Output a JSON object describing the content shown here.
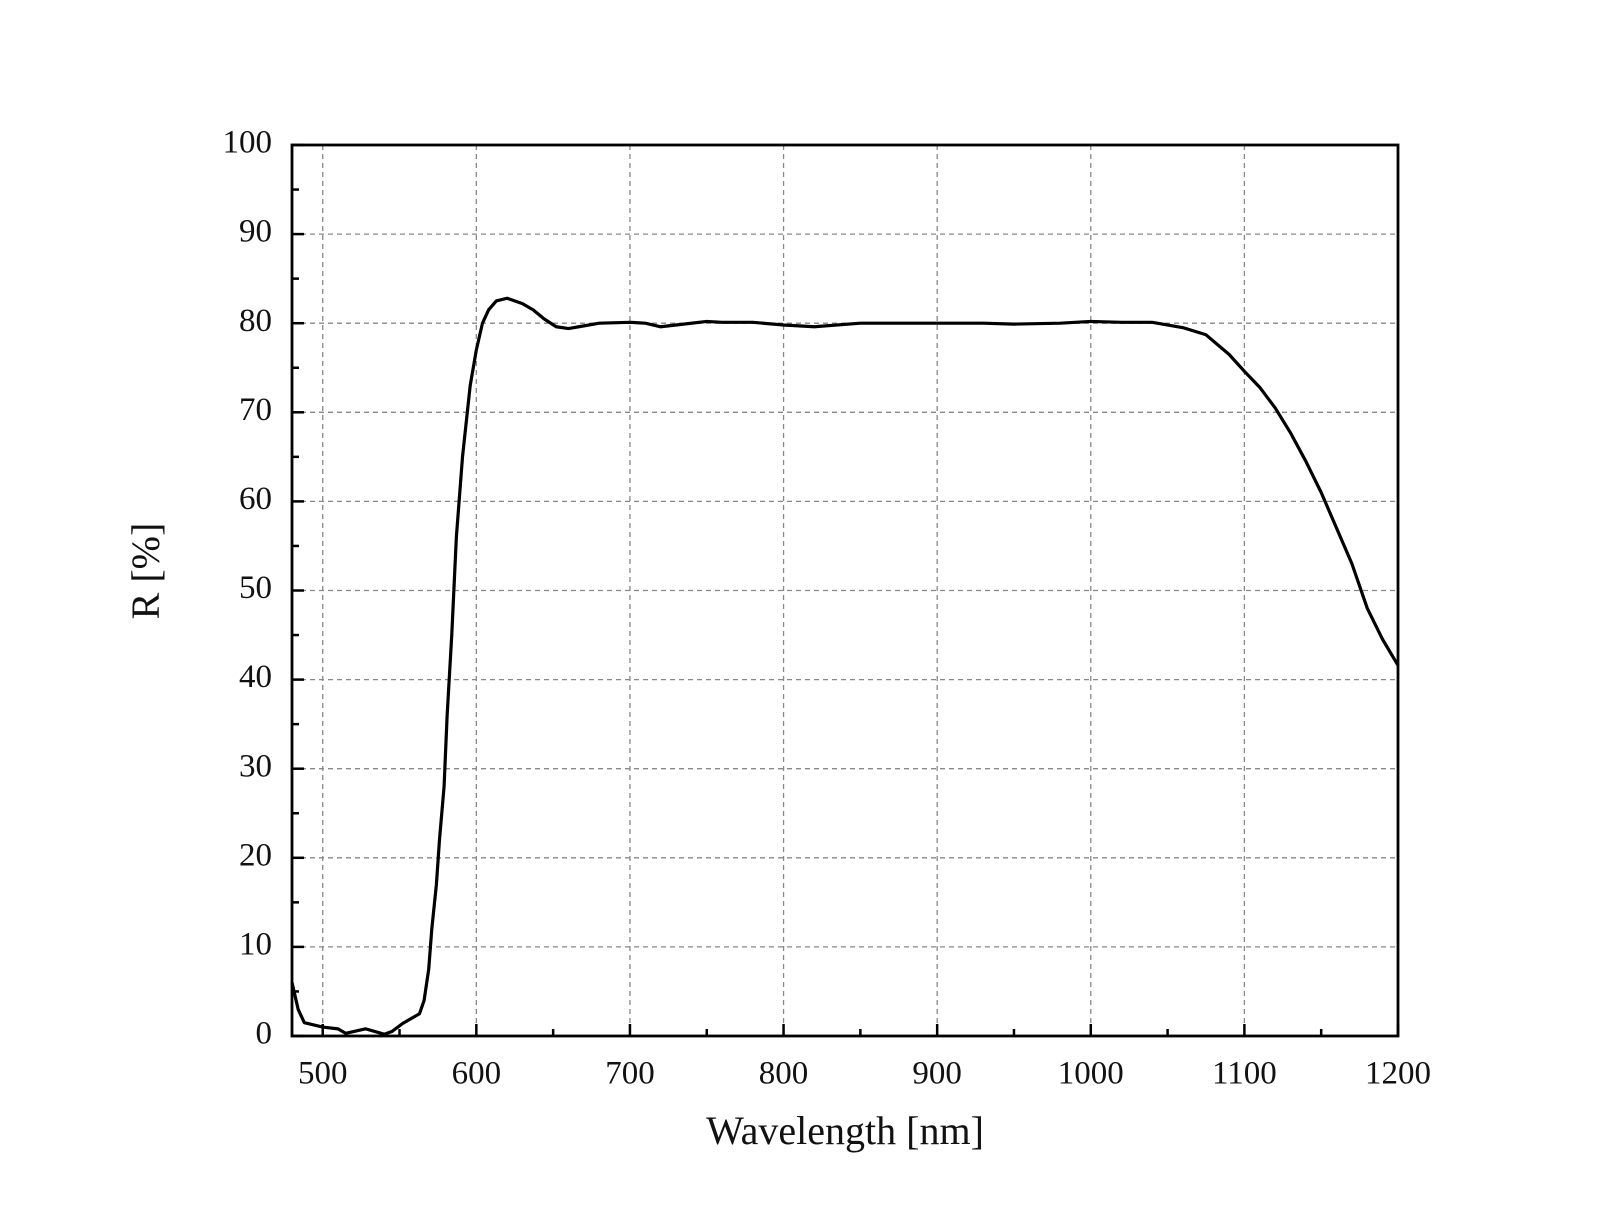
{
  "chart_data": {
    "type": "line",
    "x_label": "Wavelength [nm]",
    "y_label": "R [%]",
    "xlim": [
      480,
      1200
    ],
    "xticks": [
      500,
      600,
      700,
      800,
      900,
      1000,
      1100,
      1200
    ],
    "minor_xticks": [
      550,
      650,
      750,
      850,
      950,
      1050,
      1150
    ],
    "ylim": [
      0,
      100
    ],
    "yticks": [
      0,
      10,
      20,
      30,
      40,
      50,
      60,
      70,
      80,
      90,
      100
    ],
    "minor_yticks": [
      5,
      15,
      25,
      35,
      45,
      55,
      65,
      75,
      85,
      95
    ],
    "grid": true,
    "series": [
      {
        "color": "#000000",
        "x": [
          480,
          484,
          488,
          500,
          510,
          515,
          528,
          540,
          545,
          552,
          563,
          566,
          569,
          571,
          574,
          576,
          579,
          581,
          584,
          587,
          591,
          596,
          600,
          604,
          608,
          613,
          620,
          630,
          637,
          644,
          652,
          660,
          670,
          680,
          700,
          710,
          720,
          730,
          750,
          760,
          780,
          800,
          820,
          850,
          900,
          930,
          950,
          980,
          1000,
          1020,
          1040,
          1060,
          1075,
          1090,
          1100,
          1110,
          1120,
          1130,
          1140,
          1150,
          1160,
          1170,
          1180,
          1190,
          1200
        ],
        "values": [
          6,
          3,
          1.5,
          1,
          0.8,
          0.3,
          0.8,
          0.2,
          0.5,
          1.4,
          2.5,
          4,
          7.5,
          12,
          17,
          22,
          28,
          36,
          45,
          56,
          65,
          73,
          77,
          80,
          81.5,
          82.5,
          82.8,
          82.2,
          81.5,
          80.5,
          79.6,
          79.4,
          79.7,
          80,
          80.1,
          80,
          79.6,
          79.8,
          80.2,
          80.1,
          80.1,
          79.8,
          79.6,
          80,
          80,
          80,
          79.9,
          80,
          80.2,
          80.1,
          80.1,
          79.5,
          78.7,
          76.5,
          74.6,
          72.8,
          70.5,
          67.7,
          64.5,
          61,
          57,
          53,
          48,
          44.5,
          41.6
        ]
      }
    ]
  }
}
